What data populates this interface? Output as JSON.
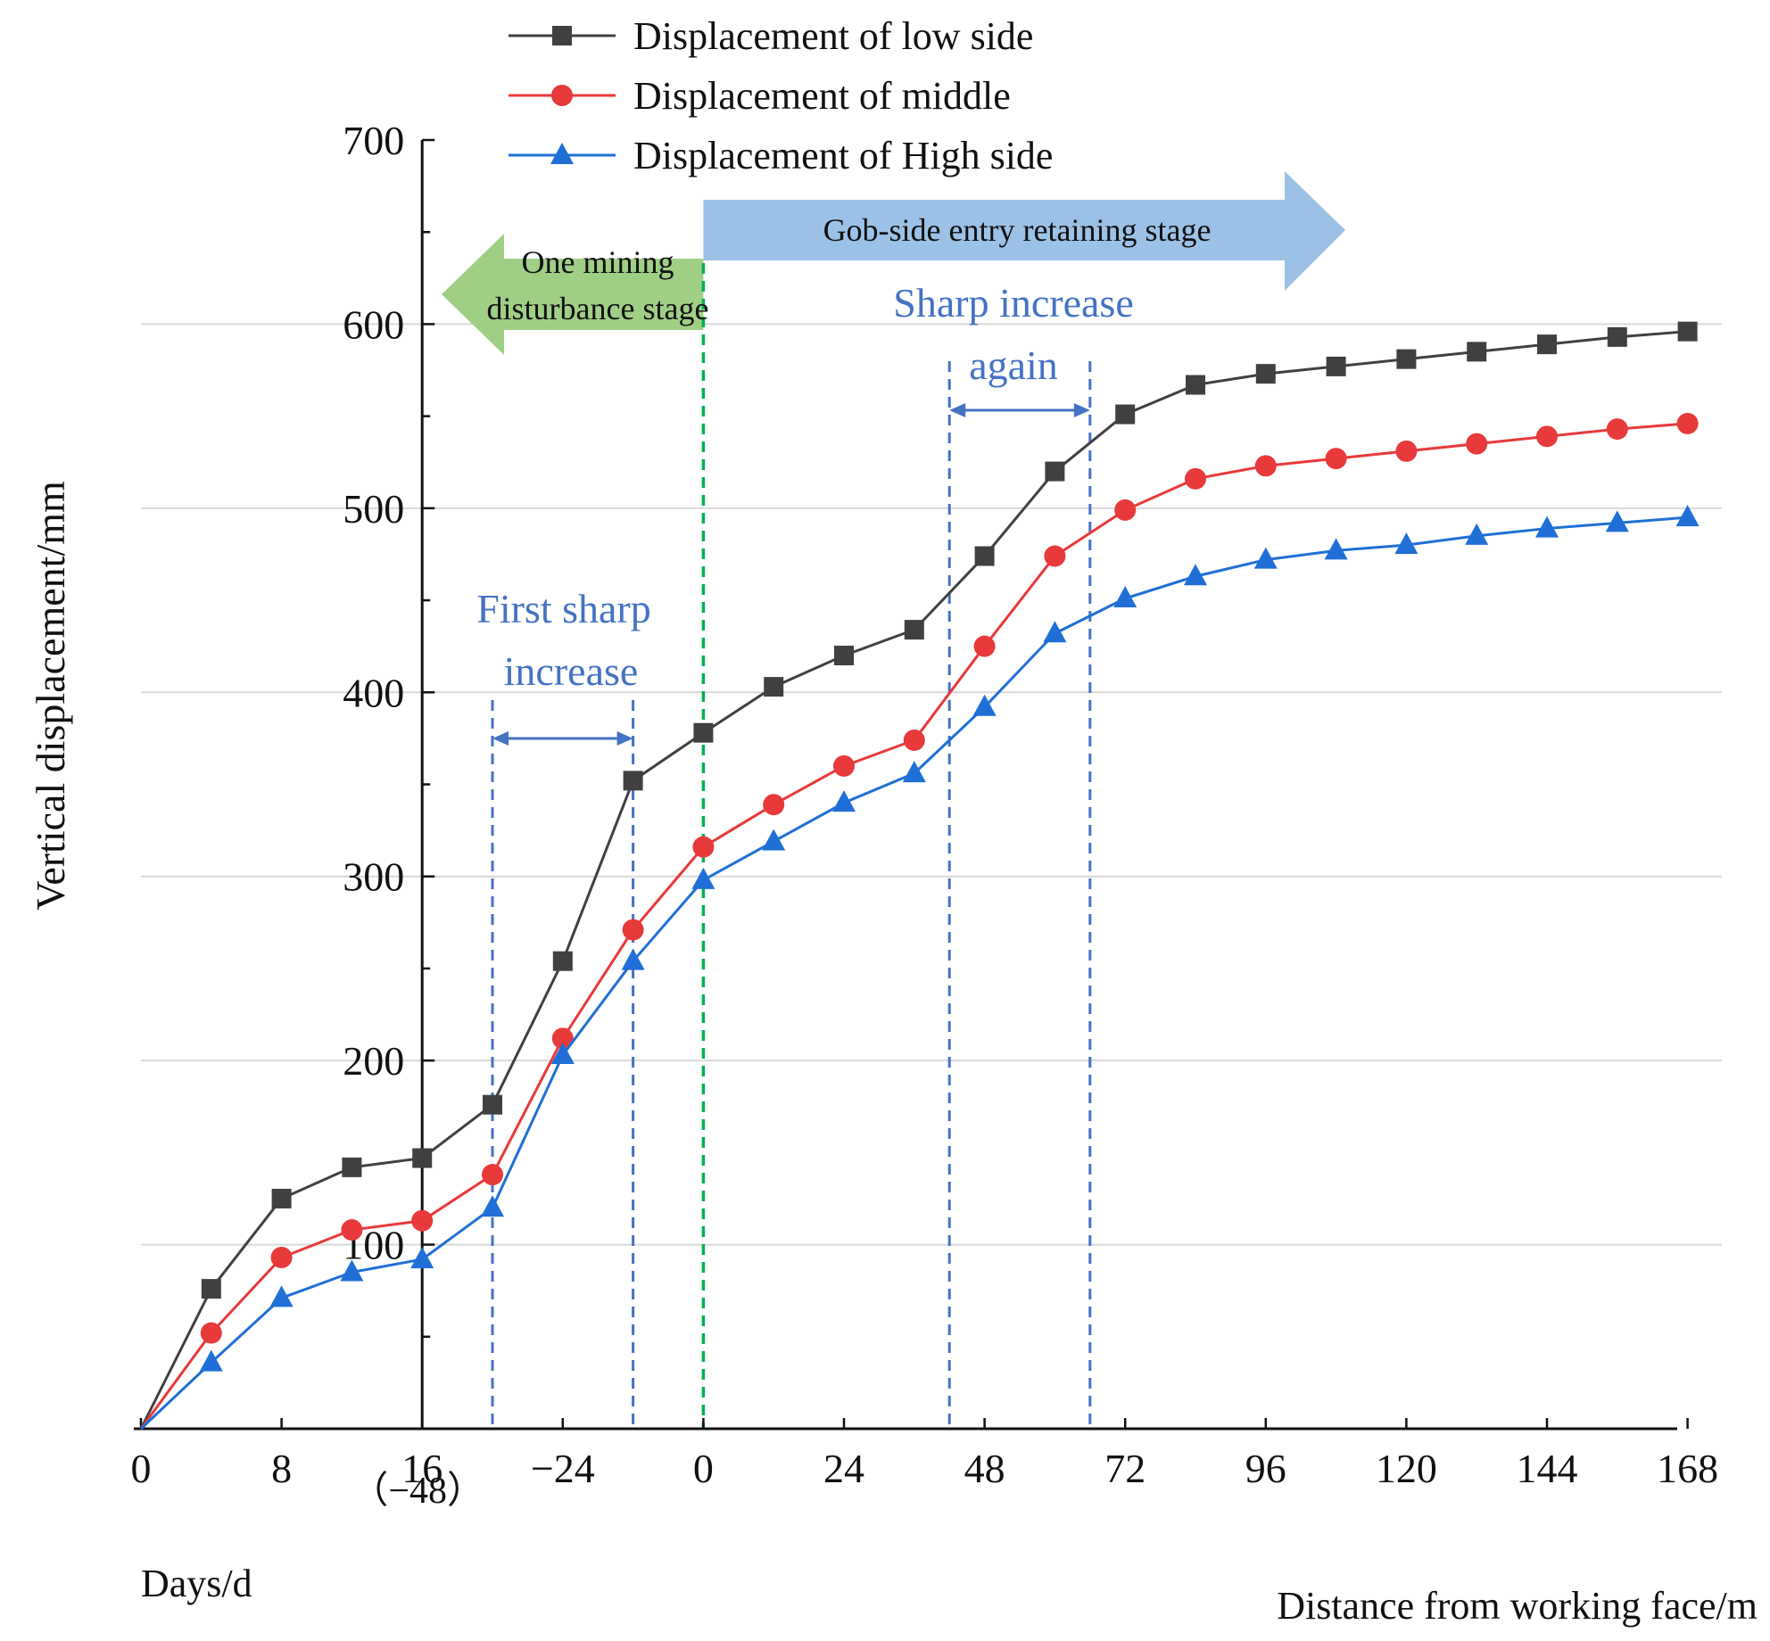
{
  "chart_data": {
    "type": "line",
    "ylabel": "Vertical displacement/mm",
    "xlabel_days": "Days/d",
    "xlabel_distance": "Distance from working face/m",
    "ylim": [
      0,
      700
    ],
    "yticks": [
      "700",
      "600",
      "500",
      "400",
      "300",
      "200",
      "100"
    ],
    "yticks_values": [
      700,
      600,
      500,
      400,
      300,
      200,
      100
    ],
    "xticks": [
      {
        "label": "0",
        "pos": 0
      },
      {
        "label": "8",
        "pos": 8
      },
      {
        "label": "16",
        "pos": 16
      },
      {
        "label": "−24",
        "pos": 24
      },
      {
        "label": "0",
        "pos": 32
      },
      {
        "label": "24",
        "pos": 40
      },
      {
        "label": "48",
        "pos": 48
      },
      {
        "label": "72",
        "pos": 56
      },
      {
        "label": "96",
        "pos": 64
      },
      {
        "label": "120",
        "pos": 72
      },
      {
        "label": "144",
        "pos": 80
      },
      {
        "label": "168",
        "pos": 88
      }
    ],
    "xtick_sub_label": "（−48）",
    "grid": "horizontal",
    "legend": [
      {
        "name": "Displacement of low side",
        "color": "#404040",
        "marker": "square"
      },
      {
        "name": "Displacement of middle",
        "color": "#e8393b",
        "marker": "circle"
      },
      {
        "name": "Displacement of High side",
        "color": "#1f6fd6",
        "marker": "triangle"
      }
    ],
    "series": [
      {
        "name": "Displacement of low side",
        "x": [
          0,
          4,
          8,
          12,
          16,
          20,
          24,
          28,
          32,
          36,
          40,
          44,
          48,
          52,
          56,
          60,
          64,
          68,
          72,
          76,
          80,
          84,
          88
        ],
        "values": [
          0,
          76,
          125,
          142,
          147,
          176,
          254,
          352,
          378,
          403,
          420,
          434,
          474,
          520,
          551,
          567,
          573,
          577,
          581,
          585,
          589,
          593,
          596
        ]
      },
      {
        "name": "Displacement of middle",
        "x": [
          0,
          4,
          8,
          12,
          16,
          20,
          24,
          28,
          32,
          36,
          40,
          44,
          48,
          52,
          56,
          60,
          64,
          68,
          72,
          76,
          80,
          84,
          88
        ],
        "values": [
          0,
          52,
          93,
          108,
          113,
          138,
          212,
          271,
          316,
          339,
          360,
          374,
          425,
          474,
          499,
          516,
          523,
          527,
          531,
          535,
          539,
          543,
          546
        ]
      },
      {
        "name": "Displacement of High side",
        "x": [
          0,
          4,
          8,
          12,
          16,
          20,
          24,
          28,
          32,
          36,
          40,
          44,
          48,
          52,
          56,
          60,
          64,
          68,
          72,
          76,
          80,
          84,
          88
        ],
        "values": [
          0,
          36,
          71,
          85,
          92,
          120,
          203,
          254,
          298,
          319,
          340,
          356,
          392,
          432,
          451,
          463,
          472,
          477,
          480,
          485,
          489,
          492,
          495
        ]
      }
    ],
    "annotations": {
      "gob_stage_label": "Gob-side entry retaining  stage",
      "mining_stage_line1": "One mining",
      "mining_stage_line2": "disturbance stage",
      "sharp_again_line1": "Sharp increase",
      "sharp_again_line2": "again",
      "first_sharp_line1": "First sharp",
      "first_sharp_line2": "increase",
      "first_sharp_range": [
        20,
        28
      ],
      "sharp_again_range": [
        46,
        54
      ],
      "working_face_x": 32
    },
    "colors": {
      "green_arrow": "#9fcf85",
      "blue_arrow": "#9bc2e6",
      "annotation_blue": "#4472c4",
      "green_line": "#00b050",
      "grid": "#d9d9d9"
    }
  }
}
